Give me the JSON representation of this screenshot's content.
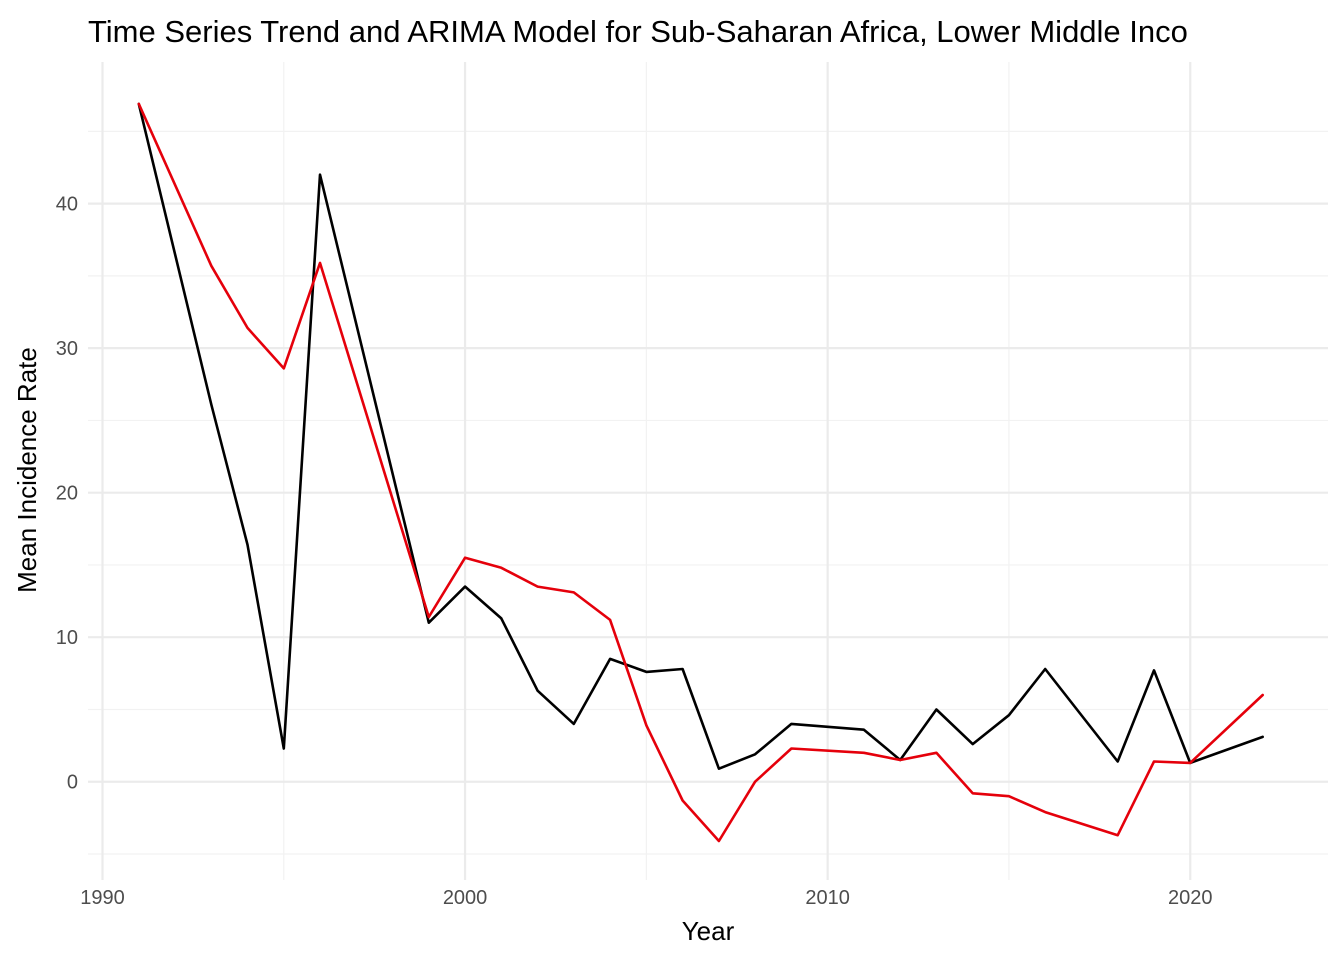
{
  "chart_data": {
    "type": "line",
    "title": "Time Series Trend and ARIMA Model for Sub-Saharan Africa, Lower Middle Inco",
    "xlabel": "Year",
    "ylabel": "Mean Incidence Rate",
    "xlim": [
      1989.6,
      2023.8
    ],
    "ylim": [
      -6.8,
      49.8
    ],
    "x_ticks": [
      1990,
      2000,
      2010,
      2020
    ],
    "x_tick_labels": [
      "1990",
      "2000",
      "2010",
      "2020"
    ],
    "y_ticks": [
      0,
      10,
      20,
      30,
      40
    ],
    "y_tick_labels": [
      "0",
      "10",
      "20",
      "30",
      "40"
    ],
    "grid": true,
    "legend": "none",
    "series": [
      {
        "color": "#000000",
        "x": [
          1991,
          1993,
          1994,
          1995,
          1996,
          1999,
          2000,
          2001,
          2002,
          2003,
          2004,
          2005,
          2006,
          2007,
          2008,
          2009,
          2011,
          2012,
          2013,
          2014,
          2015,
          2016,
          2018,
          2019,
          2020,
          2022
        ],
        "y": [
          46.9,
          26.1,
          16.4,
          2.3,
          42.0,
          11.0,
          13.5,
          11.3,
          6.3,
          4.0,
          8.5,
          7.6,
          7.8,
          0.9,
          1.9,
          4.0,
          3.6,
          1.5,
          5.0,
          2.6,
          4.6,
          7.8,
          1.4,
          7.7,
          1.3,
          3.1
        ]
      },
      {
        "color": "#e5000b",
        "x": [
          1991,
          1993,
          1994,
          1995,
          1996,
          1999,
          2000,
          2001,
          2002,
          2003,
          2004,
          2005,
          2006,
          2007,
          2008,
          2009,
          2011,
          2012,
          2013,
          2014,
          2015,
          2016,
          2018,
          2019,
          2020,
          2022
        ],
        "y": [
          46.9,
          35.7,
          31.4,
          28.6,
          35.9,
          11.4,
          15.5,
          14.8,
          13.5,
          13.1,
          11.2,
          3.9,
          -1.3,
          -4.1,
          0.0,
          2.3,
          2.0,
          1.5,
          2.0,
          -0.8,
          -1.0,
          -2.1,
          -3.7,
          1.4,
          1.3,
          6.0
        ]
      }
    ]
  }
}
